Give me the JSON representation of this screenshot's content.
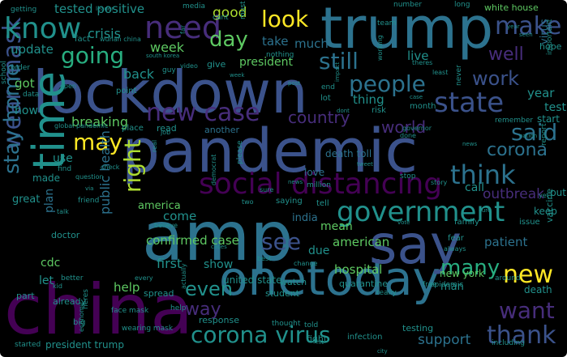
{
  "title": "",
  "palette": {
    "background": "#000000",
    "dark_purple": "#440154",
    "purple": "#472d7b",
    "blue_purple": "#3b528b",
    "slate_blue": "#2c728e",
    "teal": "#21918c",
    "green_teal": "#28ae80",
    "green": "#5ec962",
    "yellow_green": "#addc30",
    "yellow": "#fde725"
  },
  "words": [
    {
      "text": "pandemic",
      "color": "#3b528b",
      "weight": 1.0
    },
    {
      "text": "lockdown",
      "color": "#3b528b",
      "weight": 0.9
    },
    {
      "text": "amp",
      "color": "#2c728e",
      "weight": 0.9
    },
    {
      "text": "china",
      "color": "#440154",
      "weight": 0.85
    },
    {
      "text": "trump",
      "color": "#2c728e",
      "weight": 0.8
    },
    {
      "text": "time",
      "color": "#21918c",
      "weight": 0.8
    },
    {
      "text": "onetoday",
      "color": "#2c728e",
      "weight": 0.75
    },
    {
      "text": "say",
      "color": "#3b528b",
      "weight": 0.75
    },
    {
      "text": "social distancing",
      "color": "#440154",
      "weight": 0.55
    },
    {
      "text": "government",
      "color": "#21918c",
      "weight": 0.5
    },
    {
      "text": "wear mask",
      "color": "#3b528b",
      "weight": 0.5
    },
    {
      "text": "stay home",
      "color": "#2c728e",
      "weight": 0.45
    },
    {
      "text": "people",
      "color": "#2c728e",
      "weight": 0.45
    },
    {
      "text": "state",
      "color": "#3b528b",
      "weight": 0.45
    },
    {
      "text": "need",
      "color": "#472d7b",
      "weight": 0.45
    },
    {
      "text": "know",
      "color": "#21918c",
      "weight": 0.42
    },
    {
      "text": "look",
      "color": "#fde725",
      "weight": 0.4
    },
    {
      "text": "make",
      "color": "#3b528b",
      "weight": 0.38
    },
    {
      "text": "still",
      "color": "#2c728e",
      "weight": 0.38
    },
    {
      "text": "going",
      "color": "#28ae80",
      "weight": 0.38
    },
    {
      "text": "day",
      "color": "#5ec962",
      "weight": 0.36
    },
    {
      "text": "new case",
      "color": "#472d7b",
      "weight": 0.38
    },
    {
      "text": "right",
      "color": "#addc30",
      "weight": 0.4
    },
    {
      "text": "may",
      "color": "#fde725",
      "weight": 0.38
    },
    {
      "text": "think",
      "color": "#2c728e",
      "weight": 0.38
    },
    {
      "text": "corona",
      "color": "#2c728e",
      "weight": 0.38
    },
    {
      "text": "said",
      "color": "#2c728e",
      "weight": 0.36
    },
    {
      "text": "corona virus",
      "color": "#21918c",
      "weight": 0.4
    },
    {
      "text": "new",
      "color": "#fde725",
      "weight": 0.36
    },
    {
      "text": "want",
      "color": "#472d7b",
      "weight": 0.36
    },
    {
      "text": "thank",
      "color": "#3b528b",
      "weight": 0.36
    },
    {
      "text": "many",
      "color": "#28ae80",
      "weight": 0.35
    },
    {
      "text": "see",
      "color": "#3b528b",
      "weight": 0.35
    },
    {
      "text": "even",
      "color": "#21918c",
      "weight": 0.34
    },
    {
      "text": "way",
      "color": "#472d7b",
      "weight": 0.32
    },
    {
      "text": "work",
      "color": "#3b528b",
      "weight": 0.32
    },
    {
      "text": "well",
      "color": "#472d7b",
      "weight": 0.32
    },
    {
      "text": "world",
      "color": "#472d7b",
      "weight": 0.3
    },
    {
      "text": "country",
      "color": "#472d7b",
      "weight": 0.28
    },
    {
      "text": "public health",
      "color": "#2c728e",
      "weight": 0.25
    },
    {
      "text": "confirmed case",
      "color": "#5ec962",
      "weight": 0.22
    },
    {
      "text": "outbreak",
      "color": "#472d7b",
      "weight": 0.22
    },
    {
      "text": "support",
      "color": "#2c728e",
      "weight": 0.22
    },
    {
      "text": "hospital",
      "color": "#5ec962",
      "weight": 0.22
    },
    {
      "text": "patient",
      "color": "#2c728e",
      "weight": 0.22
    },
    {
      "text": "breaking",
      "color": "#5ec962",
      "weight": 0.2
    },
    {
      "text": "american",
      "color": "#5ec962",
      "weight": 0.2
    },
    {
      "text": "america",
      "color": "#5ec962",
      "weight": 0.18
    },
    {
      "text": "week",
      "color": "#5ec962",
      "weight": 0.2
    },
    {
      "text": "take",
      "color": "#2c728e",
      "weight": 0.2
    },
    {
      "text": "much",
      "color": "#2c728e",
      "weight": 0.2
    },
    {
      "text": "update",
      "color": "#21918c",
      "weight": 0.2
    },
    {
      "text": "got",
      "color": "#5ec962",
      "weight": 0.18
    },
    {
      "text": "now",
      "color": "#21918c",
      "weight": 0.18
    },
    {
      "text": "cdc",
      "color": "#5ec962",
      "weight": 0.18
    },
    {
      "text": "help",
      "color": "#5ec962",
      "weight": 0.18
    },
    {
      "text": "let",
      "color": "#21918c",
      "weight": 0.18
    },
    {
      "text": "mean",
      "color": "#5ec962",
      "weight": 0.18
    },
    {
      "text": "due",
      "color": "#21918c",
      "weight": 0.18
    },
    {
      "text": "first",
      "color": "#21918c",
      "weight": 0.18
    },
    {
      "text": "show",
      "color": "#21918c",
      "weight": 0.18
    },
    {
      "text": "come",
      "color": "#21918c",
      "weight": 0.18
    },
    {
      "text": "plan",
      "color": "#2c728e",
      "weight": 0.16
    },
    {
      "text": "call",
      "color": "#21918c",
      "weight": 0.16
    },
    {
      "text": "year",
      "color": "#21918c",
      "weight": 0.16
    },
    {
      "text": "test",
      "color": "#21918c",
      "weight": 0.15
    },
    {
      "text": "live",
      "color": "#21918c",
      "weight": 0.16
    },
    {
      "text": "back",
      "color": "#21918c",
      "weight": 0.16
    },
    {
      "text": "crisis",
      "color": "#21918c",
      "weight": 0.16
    },
    {
      "text": "good",
      "color": "#addc30",
      "weight": 0.18
    },
    {
      "text": "tested positive",
      "color": "#21918c",
      "weight": 0.16
    },
    {
      "text": "president",
      "color": "#5ec962",
      "weight": 0.15
    },
    {
      "text": "president trump",
      "color": "#21918c",
      "weight": 0.12
    },
    {
      "text": "thing",
      "color": "#21918c",
      "weight": 0.15
    },
    {
      "text": "death toll",
      "color": "#2c728e",
      "weight": 0.12
    },
    {
      "text": "new york",
      "color": "#5ec962",
      "weight": 0.14
    },
    {
      "text": "india",
      "color": "#2c728e",
      "weight": 0.14
    },
    {
      "text": "man",
      "color": "#21918c",
      "weight": 0.14
    },
    {
      "text": "death",
      "color": "#21918c",
      "weight": 0.12
    },
    {
      "text": "united state",
      "color": "#21918c",
      "weight": 0.12
    },
    {
      "text": "quarantine",
      "color": "#21918c",
      "weight": 0.12
    },
    {
      "text": "testing",
      "color": "#21918c",
      "weight": 0.12
    },
    {
      "text": "vaccine",
      "color": "#21918c",
      "weight": 0.12
    },
    {
      "text": "virus",
      "color": "#2c728e",
      "weight": 0.14
    },
    {
      "text": "white house",
      "color": "#5ec962",
      "weight": 0.1
    },
    {
      "text": "fight",
      "color": "#21918c",
      "weight": 0.1
    },
    {
      "text": "give",
      "color": "#21918c",
      "weight": 0.1
    },
    {
      "text": "hope",
      "color": "#21918c",
      "weight": 0.1
    },
    {
      "text": "start",
      "color": "#21918c",
      "weight": 0.1
    },
    {
      "text": "read",
      "color": "#21918c",
      "weight": 0.1
    },
    {
      "text": "another",
      "color": "#2c728e",
      "weight": 0.1
    },
    {
      "text": "love",
      "color": "#2c728e",
      "weight": 0.1
    },
    {
      "text": "use",
      "color": "#21918c",
      "weight": 0.12
    },
    {
      "text": "made",
      "color": "#21918c",
      "weight": 0.1
    },
    {
      "text": "great",
      "color": "#21918c",
      "weight": 0.1
    },
    {
      "text": "keep",
      "color": "#21918c",
      "weight": 0.1
    },
    {
      "text": "put",
      "color": "#21918c",
      "weight": 0.1
    },
    {
      "text": "issue",
      "color": "#21918c",
      "weight": 0.08
    },
    {
      "text": "family",
      "color": "#21918c",
      "weight": 0.08
    },
    {
      "text": "fear",
      "color": "#21918c",
      "weight": 0.08
    },
    {
      "text": "student",
      "color": "#21918c",
      "weight": 0.08
    },
    {
      "text": "watch",
      "color": "#21918c",
      "weight": 0.08
    },
    {
      "text": "response",
      "color": "#21918c",
      "weight": 0.08
    },
    {
      "text": "part",
      "color": "#21918c",
      "weight": 0.08
    },
    {
      "text": "already",
      "color": "#21918c",
      "weight": 0.08
    },
    {
      "text": "big",
      "color": "#21918c",
      "weight": 0.08
    },
    {
      "text": "spread",
      "color": "#21918c",
      "weight": 0.08
    },
    {
      "text": "doctor",
      "color": "#21918c",
      "weight": 0.08
    },
    {
      "text": "infection",
      "color": "#21918c",
      "weight": 0.08
    },
    {
      "text": "epidemic",
      "color": "#21918c",
      "weight": 0.07
    },
    {
      "text": "saying",
      "color": "#21918c",
      "weight": 0.07
    },
    {
      "text": "tell",
      "color": "#21918c",
      "weight": 0.07
    },
    {
      "text": "school",
      "color": "#21918c",
      "weight": 0.06
    },
    {
      "text": "order",
      "color": "#21918c",
      "weight": 0.06
    },
    {
      "text": "data",
      "color": "#21918c",
      "weight": 0.06
    },
    {
      "text": "fact",
      "color": "#21918c",
      "weight": 0.06
    },
    {
      "text": "point",
      "color": "#21918c",
      "weight": 0.06
    },
    {
      "text": "guy",
      "color": "#21918c",
      "weight": 0.06
    },
    {
      "text": "place",
      "color": "#21918c",
      "weight": 0.06
    },
    {
      "text": "lot",
      "color": "#21918c",
      "weight": 0.06
    },
    {
      "text": "risk",
      "color": "#21918c",
      "weight": 0.06
    },
    {
      "text": "month",
      "color": "#21918c",
      "weight": 0.06
    },
    {
      "text": "find",
      "color": "#21918c",
      "weight": 0.05
    },
    {
      "text": "friend",
      "color": "#21918c",
      "weight": 0.05
    },
    {
      "text": "media",
      "color": "#21918c",
      "weight": 0.05
    },
    {
      "text": "must",
      "color": "#21918c",
      "weight": 0.05
    },
    {
      "text": "cant",
      "color": "#21918c",
      "weight": 0.05
    },
    {
      "text": "end",
      "color": "#21918c",
      "weight": 0.05
    },
    {
      "text": "stop",
      "color": "#21918c",
      "weight": 0.05
    },
    {
      "text": "help",
      "color": "#21918c",
      "weight": 0.05
    },
    {
      "text": "getting",
      "color": "#21918c",
      "weight": 0.04
    },
    {
      "text": "number",
      "color": "#21918c",
      "weight": 0.04
    },
    {
      "text": "team",
      "color": "#21918c",
      "weight": 0.04
    },
    {
      "text": "long",
      "color": "#21918c",
      "weight": 0.04
    },
    {
      "text": "nothing",
      "color": "#21918c",
      "weight": 0.04
    },
    {
      "text": "wuhan china",
      "color": "#21918c",
      "weight": 0.04
    },
    {
      "text": "global pandemic",
      "color": "#21918c",
      "weight": 0.04
    },
    {
      "text": "face mask",
      "color": "#21918c",
      "weight": 0.04
    },
    {
      "text": "wearing mask",
      "color": "#21918c",
      "weight": 0.04
    },
    {
      "text": "heres",
      "color": "#21918c",
      "weight": 0.04
    },
    {
      "text": "remember",
      "color": "#21918c",
      "weight": 0.04
    },
    {
      "text": "million",
      "color": "#21918c",
      "weight": 0.04
    },
    {
      "text": "believe",
      "color": "#21918c",
      "weight": 0.04
    },
    {
      "text": "really",
      "color": "#21918c",
      "weight": 0.04
    },
    {
      "text": "better",
      "color": "#21918c",
      "weight": 0.04
    },
    {
      "text": "free",
      "color": "#21918c",
      "weight": 0.04
    },
    {
      "text": "around",
      "color": "#21918c",
      "weight": 0.04
    },
    {
      "text": "thought",
      "color": "#21918c",
      "weight": 0.04
    },
    {
      "text": "told",
      "color": "#21918c",
      "weight": 0.04
    },
    {
      "text": "including",
      "color": "#21918c",
      "weight": 0.04
    },
    {
      "text": "started",
      "color": "#21918c",
      "weight": 0.04
    },
    {
      "text": "leader",
      "color": "#21918c",
      "weight": 0.03
    },
    {
      "text": "video",
      "color": "#21918c",
      "weight": 0.03
    },
    {
      "text": "south korea",
      "color": "#21918c",
      "weight": 0.03
    },
    {
      "text": "theres",
      "color": "#21918c",
      "weight": 0.03
    },
    {
      "text": "least",
      "color": "#21918c",
      "weight": 0.03
    },
    {
      "text": "never",
      "color": "#21918c",
      "weight": 0.03
    },
    {
      "text": "important",
      "color": "#21918c",
      "weight": 0.03
    },
    {
      "text": "job",
      "color": "#21918c",
      "weight": 0.03
    },
    {
      "text": "done",
      "color": "#21918c",
      "weight": 0.03
    },
    {
      "text": "question",
      "color": "#21918c",
      "weight": 0.03
    },
    {
      "text": "please",
      "color": "#21918c",
      "weight": 0.03
    },
    {
      "text": "check",
      "color": "#21918c",
      "weight": 0.03
    },
    {
      "text": "every",
      "color": "#21918c",
      "weight": 0.03
    },
    {
      "text": "change",
      "color": "#21918c",
      "weight": 0.03
    },
    {
      "text": "best",
      "color": "#21918c",
      "weight": 0.03
    },
    {
      "text": "story",
      "color": "#21918c",
      "weight": 0.03
    },
    {
      "text": "always",
      "color": "#21918c",
      "weight": 0.03
    },
    {
      "text": "actually",
      "color": "#21918c",
      "weight": 0.03
    },
    {
      "text": "open",
      "color": "#21918c",
      "weight": 0.03
    },
    {
      "text": "governor",
      "color": "#21918c",
      "weight": 0.03
    },
    {
      "text": "economy",
      "color": "#21918c",
      "weight": 0.03
    },
    {
      "text": "two",
      "color": "#21918c",
      "weight": 0.03
    },
    {
      "text": "yet",
      "color": "#21918c",
      "weight": 0.03
    },
    {
      "text": "talk",
      "color": "#21918c",
      "weight": 0.03
    },
    {
      "text": "kid",
      "color": "#21918c",
      "weight": 0.03
    },
    {
      "text": "far",
      "color": "#21918c",
      "weight": 0.03
    },
    {
      "text": "sure",
      "color": "#21918c",
      "weight": 0.03
    },
    {
      "text": "democrat",
      "color": "#21918c",
      "weight": 0.03
    },
    {
      "text": "real",
      "color": "#21918c",
      "weight": 0.03
    },
    {
      "text": "nation",
      "color": "#21918c",
      "weight": 0.03
    },
    {
      "text": "working",
      "color": "#21918c",
      "weight": 0.03
    },
    {
      "text": "cure",
      "color": "#21918c",
      "weight": 0.03
    },
    {
      "text": "impact",
      "color": "#21918c",
      "weight": 0.03
    },
    {
      "text": "week",
      "color": "#21918c",
      "weight": 0.03
    },
    {
      "text": "city",
      "color": "#21918c",
      "weight": 0.03
    },
    {
      "text": "seen",
      "color": "#21918c",
      "weight": 0.03
    },
    {
      "text": "case",
      "color": "#21918c",
      "weight": 0.03
    },
    {
      "text": "news",
      "color": "#21918c",
      "weight": 0.03
    },
    {
      "text": "post",
      "color": "#21918c",
      "weight": 0.03
    },
    {
      "text": "dont",
      "color": "#21918c",
      "weight": 0.03
    },
    {
      "text": "year",
      "color": "#21918c",
      "weight": 0.03
    },
    {
      "text": "report",
      "color": "#21918c",
      "weight": 0.03
    },
    {
      "text": "tweet",
      "color": "#21918c",
      "weight": 0.03
    },
    {
      "text": "vote",
      "color": "#21918c",
      "weight": 0.03
    },
    {
      "text": "hit",
      "color": "#21918c",
      "weight": 0.03
    },
    {
      "text": "news",
      "color": "#21918c",
      "weight": 0.03
    },
    {
      "text": "via",
      "color": "#21918c",
      "weight": 0.03
    },
    {
      "text": "cases",
      "color": "#21918c",
      "weight": 0.03
    }
  ]
}
